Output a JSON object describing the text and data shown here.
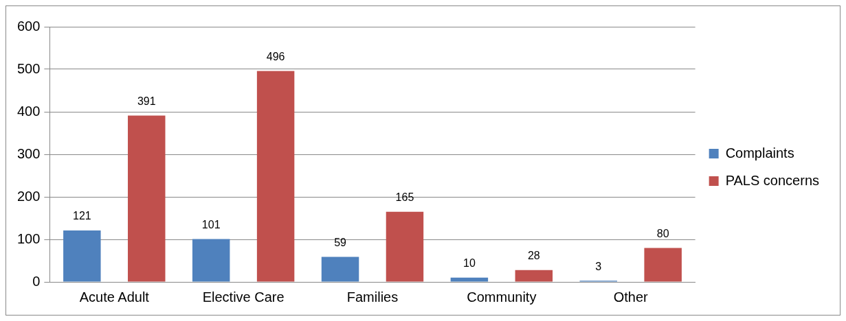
{
  "chart_data": {
    "type": "bar",
    "categories": [
      "Acute Adult",
      "Elective Care",
      "Families",
      "Community",
      "Other"
    ],
    "series": [
      {
        "name": "Complaints",
        "color": "#4f81bd",
        "values": [
          121,
          101,
          59,
          10,
          3
        ]
      },
      {
        "name": "PALS concerns",
        "color": "#c0504d",
        "values": [
          391,
          496,
          165,
          28,
          80
        ]
      }
    ],
    "ylim": [
      0,
      600
    ],
    "yticks": [
      0,
      100,
      200,
      300,
      400,
      500,
      600
    ],
    "grid": "y",
    "legend": "right",
    "data_labels": true
  }
}
